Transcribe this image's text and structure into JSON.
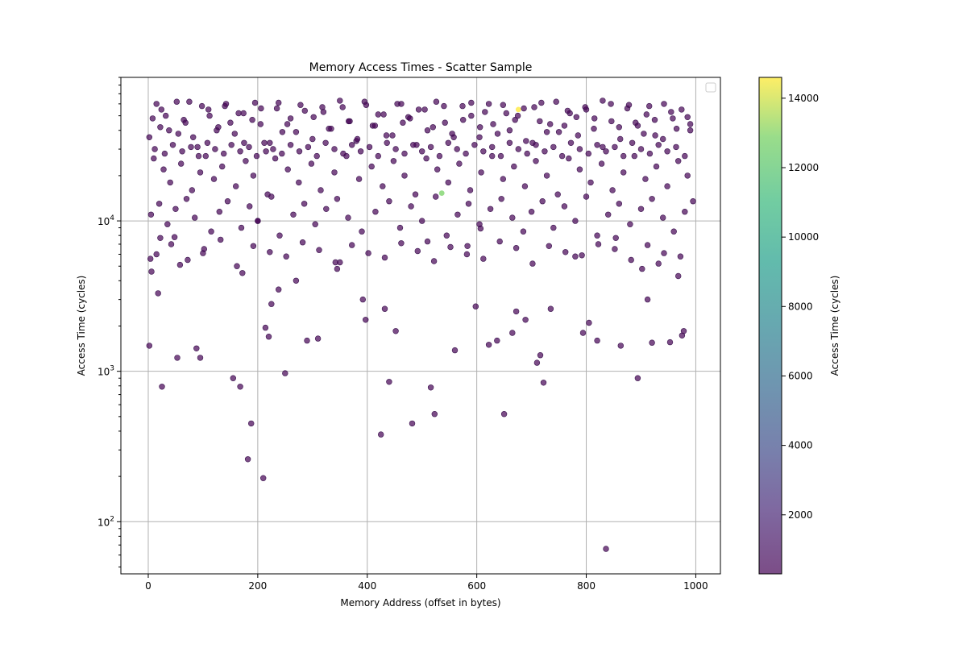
{
  "chart_data": {
    "type": "scatter",
    "title": "Memory Access Times - Scatter Sample",
    "xlabel": "Memory Address (offset in bytes)",
    "ylabel": "Access Time (cycles)",
    "x_ticks": [
      "0",
      "200",
      "400",
      "600",
      "800",
      "1000"
    ],
    "y_ticks": [
      "10^2",
      "10^3",
      "10^4"
    ],
    "xlim": [
      -50,
      1045
    ],
    "ylim": [
      45,
      90000
    ],
    "yscale": "log",
    "grid": true,
    "legend": "top-right, empty",
    "colorbar": {
      "label": "Access Time (cycles)",
      "ticks": [
        "2000",
        "4000",
        "6000",
        "8000",
        "10000",
        "12000",
        "14000"
      ],
      "range": [
        300,
        14600
      ],
      "colormap": "viridis",
      "alpha": 0.7
    },
    "point_color": "#440154",
    "marker_alpha": 0.7,
    "highlight_points": [
      {
        "x": 536,
        "y": 15300,
        "c": 12500
      },
      {
        "x": 676,
        "y": 55000,
        "c": 14600
      }
    ],
    "points": {
      "x": [
        2,
        4,
        6,
        18,
        22,
        25,
        48,
        53,
        58,
        88,
        95,
        100,
        155,
        168,
        172,
        188,
        182,
        200,
        210,
        214,
        220,
        225,
        238,
        250,
        270,
        290,
        310,
        345,
        350,
        392,
        397,
        425,
        432,
        440,
        452,
        482,
        510,
        516,
        523,
        560,
        583,
        598,
        607,
        622,
        637,
        650,
        665,
        672,
        689,
        710,
        716,
        722,
        735,
        780,
        794,
        805,
        820,
        836,
        854,
        863,
        894,
        902,
        912,
        920,
        932,
        953,
        968,
        975,
        978,
        2,
        15,
        22,
        32,
        55,
        65,
        75,
        90,
        110,
        125,
        140,
        150,
        165,
        175,
        195,
        205,
        215,
        235,
        245,
        260,
        278,
        300,
        320,
        330,
        355,
        368,
        380,
        395,
        410,
        420,
        435,
        455,
        465,
        475,
        490,
        505,
        520,
        540,
        555,
        575,
        590,
        605,
        615,
        630,
        648,
        660,
        675,
        690,
        705,
        715,
        728,
        745,
        760,
        770,
        785,
        800,
        815,
        830,
        845,
        860,
        875,
        890,
        905,
        915,
        925,
        940,
        955,
        965,
        985,
        990,
        10,
        28,
        40,
        60,
        80,
        95,
        105,
        120,
        135,
        160,
        178,
        192,
        218,
        232,
        255,
        275,
        298,
        315,
        340,
        362,
        385,
        408,
        428,
        448,
        468,
        488,
        508,
        528,
        548,
        568,
        588,
        608,
        628,
        648,
        668,
        688,
        708,
        728,
        748,
        768,
        788,
        808,
        828,
        848,
        868,
        888,
        908,
        928,
        948,
        968,
        985,
        5,
        20,
        35,
        50,
        70,
        85,
        115,
        130,
        145,
        170,
        185,
        200,
        225,
        240,
        265,
        285,
        305,
        325,
        345,
        365,
        390,
        415,
        440,
        460,
        480,
        500,
        525,
        545,
        565,
        585,
        605,
        625,
        645,
        665,
        685,
        700,
        720,
        740,
        760,
        780,
        800,
        820,
        840,
        860,
        880,
        900,
        920,
        940,
        960,
        980,
        995,
        8,
        24,
        38,
        52,
        68,
        82,
        98,
        112,
        128,
        142,
        158,
        174,
        190,
        206,
        222,
        238,
        254,
        270,
        286,
        302,
        318,
        334,
        350,
        366,
        382,
        398,
        414,
        430,
        446,
        462,
        478,
        494,
        510,
        526,
        542,
        558,
        574,
        590,
        606,
        622,
        638,
        654,
        670,
        686,
        702,
        718,
        734,
        750,
        766,
        782,
        798,
        814,
        830,
        846,
        862,
        878,
        894,
        910,
        926,
        942,
        958,
        974,
        990,
        12,
        30,
        45,
        62,
        78,
        92,
        108,
        122,
        138,
        152,
        168,
        184,
        198,
        212,
        228,
        244,
        260,
        276,
        292,
        308,
        324,
        340,
        356,
        372,
        388,
        404,
        420,
        436,
        452,
        468,
        484,
        500,
        516,
        532,
        548,
        564,
        580,
        596,
        612,
        628,
        644,
        660,
        676,
        692,
        708,
        724,
        740,
        756,
        772,
        788,
        804,
        820,
        836,
        852,
        868,
        884,
        900,
        916,
        932,
        948,
        964,
        980,
        15,
        42,
        72,
        102,
        132,
        162,
        192,
        222,
        252,
        282,
        312,
        342,
        372,
        402,
        432,
        462,
        492,
        522,
        552,
        582,
        612,
        642,
        672,
        702,
        732,
        762,
        792,
        822,
        852,
        882,
        912,
        942,
        972
      ],
      "y": [
        1480,
        5600,
        4600,
        3300,
        7700,
        790,
        7800,
        1230,
        5100,
        1420,
        1230,
        6100,
        900,
        790,
        4500,
        450,
        260,
        10000,
        195,
        1950,
        1700,
        2800,
        3500,
        970,
        4000,
        1600,
        1650,
        4800,
        5300,
        3000,
        2200,
        380,
        2600,
        850,
        1850,
        450,
        7300,
        780,
        520,
        1380,
        6800,
        2700,
        8900,
        1500,
        1600,
        520,
        1800,
        2500,
        2200,
        1140,
        1280,
        840,
        2600,
        5800,
        1800,
        2100,
        1600,
        66,
        7700,
        1480,
        900,
        4800,
        3000,
        1550,
        5200,
        1560,
        4300,
        1730,
        1850,
        36000,
        60000,
        42000,
        50000,
        38000,
        47000,
        62000,
        31000,
        55000,
        40000,
        58000,
        45000,
        52000,
        33000,
        61000,
        44000,
        29000,
        56000,
        39000,
        48000,
        59000,
        35000,
        53000,
        41000,
        57000,
        46000,
        34000,
        62000,
        43000,
        51000,
        37000,
        60000,
        45000,
        49000,
        32000,
        55000,
        42000,
        58000,
        38000,
        47000,
        61000,
        36000,
        53000,
        44000,
        59000,
        40000,
        50000,
        34000,
        57000,
        46000,
        39000,
        62000,
        43000,
        52000,
        37000,
        55000,
        48000,
        31000,
        60000,
        42000,
        56000,
        45000,
        38000,
        58000,
        47000,
        35000,
        53000,
        41000,
        49000,
        44000,
        26000,
        22000,
        18000,
        24000,
        16000,
        21000,
        27000,
        19000,
        23000,
        17000,
        25000,
        20000,
        15000,
        26000,
        22000,
        18000,
        24000,
        16000,
        21000,
        27000,
        19000,
        23000,
        17000,
        25000,
        20000,
        15000,
        26000,
        22000,
        18000,
        24000,
        16000,
        21000,
        27000,
        19000,
        23000,
        17000,
        25000,
        20000,
        15000,
        26000,
        22000,
        18000,
        24000,
        16000,
        21000,
        27000,
        19000,
        23000,
        17000,
        25000,
        20000,
        11000,
        13000,
        9500,
        12000,
        14000,
        10500,
        8500,
        11500,
        13500,
        9000,
        12500,
        10000,
        14500,
        8000,
        11000,
        13000,
        9500,
        12000,
        14000,
        10500,
        8500,
        11500,
        13500,
        9000,
        12500,
        10000,
        14500,
        8000,
        11000,
        13000,
        9500,
        12000,
        14000,
        10500,
        8500,
        11500,
        13500,
        9000,
        12500,
        10000,
        14500,
        8000,
        11000,
        13000,
        9500,
        12000,
        14000,
        10500,
        8500,
        11500,
        13500,
        48000,
        55000,
        40000,
        62000,
        45000,
        36000,
        58000,
        50000,
        42000,
        60000,
        38000,
        52000,
        47000,
        56000,
        33000,
        61000,
        44000,
        39000,
        54000,
        49000,
        57000,
        41000,
        63000,
        46000,
        35000,
        59000,
        43000,
        51000,
        37000,
        60000,
        48000,
        55000,
        40000,
        62000,
        45000,
        36000,
        58000,
        50000,
        42000,
        60000,
        38000,
        52000,
        47000,
        56000,
        33000,
        61000,
        44000,
        39000,
        54000,
        49000,
        57000,
        41000,
        63000,
        46000,
        35000,
        59000,
        43000,
        51000,
        37000,
        60000,
        48000,
        55000,
        40000,
        30000,
        28000,
        32000,
        29000,
        31000,
        27000,
        33000,
        30000,
        28000,
        32000,
        29000,
        31000,
        27000,
        33000,
        30000,
        28000,
        32000,
        29000,
        31000,
        27000,
        33000,
        30000,
        28000,
        32000,
        29000,
        31000,
        27000,
        33000,
        30000,
        28000,
        32000,
        29000,
        31000,
        27000,
        33000,
        30000,
        28000,
        32000,
        29000,
        31000,
        27000,
        33000,
        30000,
        28000,
        32000,
        29000,
        31000,
        27000,
        33000,
        30000,
        28000,
        32000,
        29000,
        31000,
        27000,
        33000,
        30000,
        28000,
        32000,
        29000,
        31000,
        27000,
        6000,
        7000,
        5500,
        6500,
        7500,
        5000,
        6800,
        6200,
        5800,
        7200,
        6400,
        5300,
        6900,
        6100,
        5700,
        7100,
        6300,
        5400,
        6700,
        6000,
        5600,
        7300,
        6600,
        5200,
        6800,
        6200,
        5900,
        7000,
        6500,
        5500,
        6900,
        6100,
        5800
      ]
    }
  }
}
